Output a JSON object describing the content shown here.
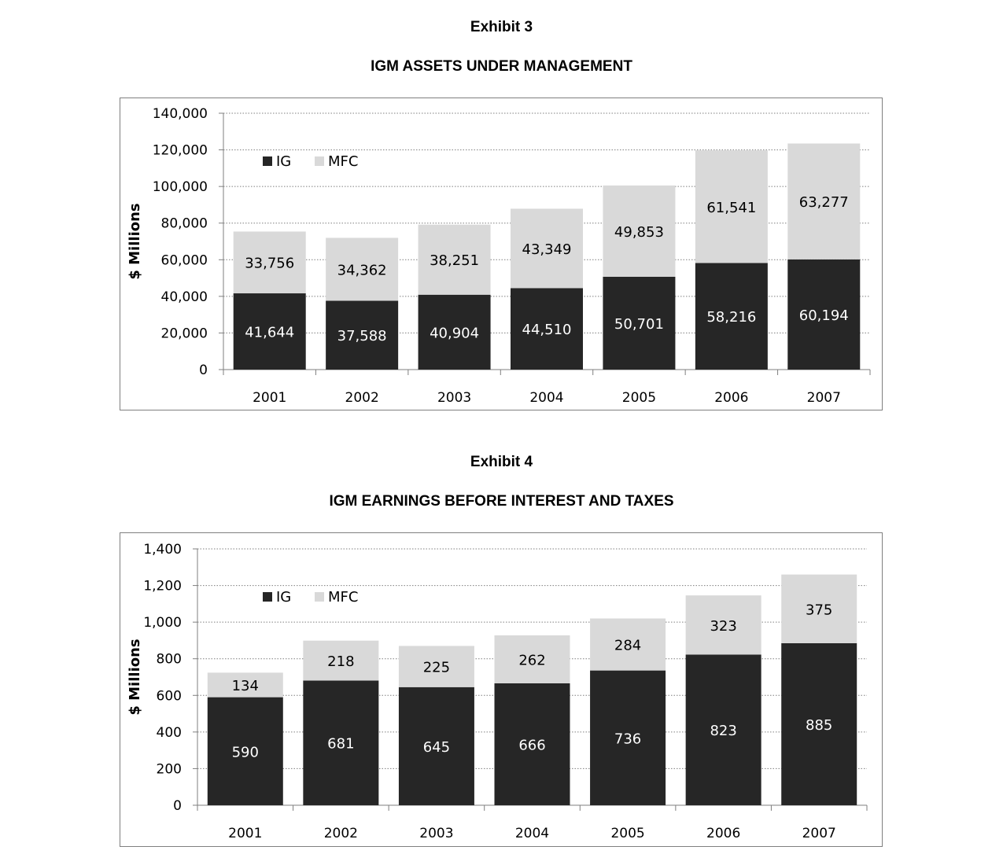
{
  "colors": {
    "ig": "#262626",
    "mfc": "#d9d9d9",
    "grid": "#7f7f7f",
    "ig_label": "#ffffff",
    "mfc_label": "#000000"
  },
  "chart_data": [
    {
      "type": "bar",
      "stacked": true,
      "exhibit": "Exhibit 3",
      "title": "IGM ASSETS UNDER MANAGEMENT",
      "ylabel": "$ Millions",
      "xlabel": "",
      "categories": [
        "2001",
        "2002",
        "2003",
        "2004",
        "2005",
        "2006",
        "2007"
      ],
      "series": [
        {
          "name": "IG",
          "values": [
            41644,
            37588,
            40904,
            44510,
            50701,
            58216,
            60194
          ]
        },
        {
          "name": "MFC",
          "values": [
            33756,
            34362,
            38251,
            43349,
            49853,
            61541,
            63277
          ]
        }
      ],
      "data_labels": [
        [
          "41,644",
          "37,588",
          "40,904",
          "44,510",
          "50,701",
          "58,216",
          "60,194"
        ],
        [
          "33,756",
          "34,362",
          "38,251",
          "43,349",
          "49,853",
          "61,541",
          "63,277"
        ]
      ],
      "ylim": [
        0,
        140000
      ],
      "yticks": [
        0,
        20000,
        40000,
        60000,
        80000,
        100000,
        120000,
        140000
      ],
      "ytick_labels": [
        "0",
        "20,000",
        "40,000",
        "60,000",
        "80,000",
        "100,000",
        "120,000",
        "140,000"
      ],
      "grid": true,
      "legend": "top-left"
    },
    {
      "type": "bar",
      "stacked": true,
      "exhibit": "Exhibit 4",
      "title": "IGM EARNINGS BEFORE INTEREST AND TAXES",
      "ylabel": "$ Millions",
      "xlabel": "",
      "categories": [
        "2001",
        "2002",
        "2003",
        "2004",
        "2005",
        "2006",
        "2007"
      ],
      "series": [
        {
          "name": "IG",
          "values": [
            590,
            681,
            645,
            666,
            736,
            823,
            885
          ]
        },
        {
          "name": "MFC",
          "values": [
            134,
            218,
            225,
            262,
            284,
            323,
            375
          ]
        }
      ],
      "data_labels": [
        [
          "590",
          "681",
          "645",
          "666",
          "736",
          "823",
          "885"
        ],
        [
          "134",
          "218",
          "225",
          "262",
          "284",
          "323",
          "375"
        ]
      ],
      "ylim": [
        0,
        1400
      ],
      "yticks": [
        0,
        200,
        400,
        600,
        800,
        1000,
        1200,
        1400
      ],
      "ytick_labels": [
        "0",
        "200",
        "400",
        "600",
        "800",
        "1,000",
        "1,200",
        "1,400"
      ],
      "grid": true,
      "legend": "top-left"
    }
  ]
}
